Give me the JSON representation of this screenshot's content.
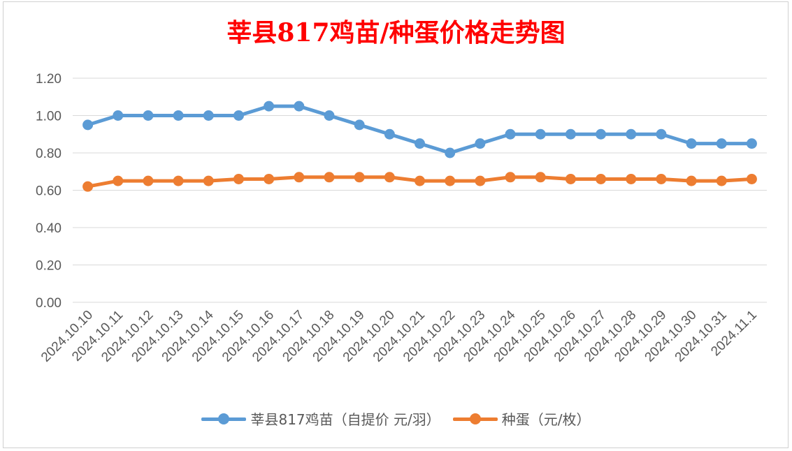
{
  "colors": {
    "title": "#ff0000",
    "series1": "#5b9bd5",
    "series2": "#ed7d31",
    "grid": "#d9d9d9"
  },
  "chart_data": {
    "type": "line",
    "title": "莘县817鸡苗/种蛋价格走势图",
    "categories": [
      "2024.10.10",
      "2024.10.11",
      "2024.10.12",
      "2024.10.13",
      "2024.10.14",
      "2024.10.15",
      "2024.10.16",
      "2024.10.17",
      "2024.10.18",
      "2024.10.19",
      "2024.10.20",
      "2024.10.21",
      "2024.10.22",
      "2024.10.23",
      "2024.10.24",
      "2024.10.25",
      "2024.10.26",
      "2024.10.27",
      "2024.10.28",
      "2024.10.29",
      "2024.10.30",
      "2024.10.31",
      "2024.11.1"
    ],
    "series": [
      {
        "name": "莘县817鸡苗（自提价 元/羽）",
        "values": [
          0.95,
          1.0,
          1.0,
          1.0,
          1.0,
          1.0,
          1.05,
          1.05,
          1.0,
          0.95,
          0.9,
          0.85,
          0.8,
          0.85,
          0.9,
          0.9,
          0.9,
          0.9,
          0.9,
          0.9,
          0.85,
          0.85,
          0.85
        ]
      },
      {
        "name": "种蛋（元/枚）",
        "values": [
          0.62,
          0.65,
          0.65,
          0.65,
          0.65,
          0.66,
          0.66,
          0.67,
          0.67,
          0.67,
          0.67,
          0.65,
          0.65,
          0.65,
          0.67,
          0.67,
          0.66,
          0.66,
          0.66,
          0.66,
          0.65,
          0.65,
          0.66
        ]
      }
    ],
    "yticks": [
      "0.00",
      "0.20",
      "0.40",
      "0.60",
      "0.80",
      "1.00",
      "1.20"
    ],
    "ylim": [
      0,
      1.2
    ],
    "grid": true,
    "legend": "bottom"
  }
}
